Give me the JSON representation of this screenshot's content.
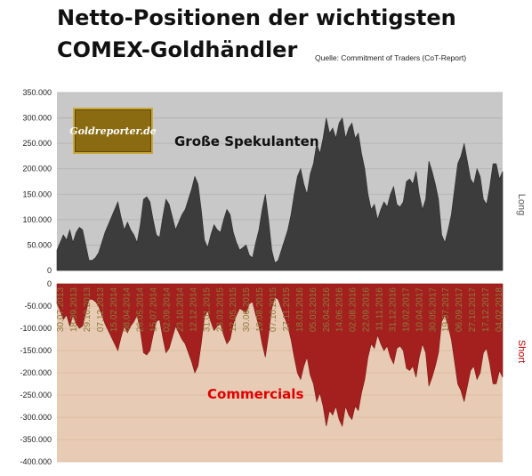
{
  "header": {
    "title_line1": "Netto-Positionen der wichtigsten",
    "title_line2": "COMEX-Goldhändler",
    "source": "Quelle: Commitment of Traders (CoT-Report)"
  },
  "logo": {
    "text": "Goldreporter.de"
  },
  "colors": {
    "top_panel_bg": "#c8c8c8",
    "top_area": "#3c3c3c",
    "bottom_panel_bg": "#e8cbb4",
    "bottom_area": "#a3201f",
    "commercials_label": "#e00000",
    "date_label": "#8c7b3a"
  },
  "chart_data": [
    {
      "type": "area",
      "panel": "top",
      "label": "Große Spekulanten",
      "side_label": "Long",
      "ylim": [
        0,
        350000
      ],
      "yticks": [
        "0",
        "50.000",
        "100.000",
        "150.000",
        "200.000",
        "250.000",
        "300.000",
        "350.000"
      ],
      "grid": true,
      "values": [
        40000,
        55000,
        70000,
        60000,
        80000,
        55000,
        75000,
        85000,
        80000,
        50000,
        20000,
        20000,
        25000,
        35000,
        55000,
        75000,
        90000,
        105000,
        120000,
        135000,
        105000,
        80000,
        95000,
        80000,
        70000,
        55000,
        90000,
        140000,
        145000,
        135000,
        100000,
        70000,
        65000,
        105000,
        140000,
        130000,
        105000,
        80000,
        95000,
        110000,
        120000,
        140000,
        160000,
        185000,
        170000,
        120000,
        60000,
        45000,
        70000,
        90000,
        80000,
        75000,
        100000,
        120000,
        110000,
        75000,
        55000,
        40000,
        45000,
        50000,
        30000,
        25000,
        55000,
        80000,
        120000,
        150000,
        100000,
        40000,
        15000,
        20000,
        40000,
        60000,
        80000,
        110000,
        150000,
        185000,
        200000,
        170000,
        150000,
        190000,
        210000,
        250000,
        230000,
        260000,
        300000,
        270000,
        280000,
        260000,
        290000,
        300000,
        260000,
        280000,
        290000,
        260000,
        270000,
        230000,
        200000,
        150000,
        120000,
        130000,
        100000,
        120000,
        135000,
        125000,
        150000,
        165000,
        130000,
        125000,
        135000,
        175000,
        180000,
        170000,
        195000,
        150000,
        120000,
        140000,
        215000,
        195000,
        170000,
        140000,
        70000,
        55000,
        80000,
        110000,
        160000,
        210000,
        225000,
        250000,
        215000,
        180000,
        170000,
        200000,
        185000,
        140000,
        130000,
        165000,
        210000,
        210000,
        180000,
        195000
      ]
    },
    {
      "type": "area",
      "panel": "bottom",
      "label": "Commercials",
      "side_label": "Short",
      "ylim": [
        -400000,
        0
      ],
      "yticks": [
        "0",
        "-50.000",
        "-100.000",
        "-150.000",
        "-200.000",
        "-250.000",
        "-300.000",
        "-350.000",
        "-400.000"
      ],
      "grid": true,
      "x_labels": [
        "30.07.2013",
        "18.09.2013",
        "29.10.2013",
        "07.12.2013",
        "15.02.2014",
        "08.04.2014",
        "26.05.2014",
        "15.07.2014",
        "02.09.2014",
        "23.10.2014",
        "12.12.2014",
        "31.01.2015",
        "23.03.2015",
        "12.05.2015",
        "30.06.2015",
        "19.08.2015",
        "07.10.2015",
        "27.11.2015",
        "18.01.2016",
        "05.03.2016",
        "26.04.2016",
        "14.06.2016",
        "02.08.2016",
        "22.09.2016",
        "11.11.2016",
        "31.12.2016",
        "19.02.2017",
        "10.04.2017",
        "30.05.2017",
        "19.07.2017",
        "06.09.2017",
        "27.10.2017",
        "17.12.2017",
        "04.02.2018"
      ],
      "values": [
        -45000,
        -60000,
        -80000,
        -70000,
        -95000,
        -70000,
        -90000,
        -100000,
        -95000,
        -65000,
        -35000,
        -35000,
        -40000,
        -50000,
        -70000,
        -90000,
        -105000,
        -120000,
        -135000,
        -150000,
        -120000,
        -95000,
        -110000,
        -95000,
        -85000,
        -70000,
        -105000,
        -155000,
        -160000,
        -150000,
        -115000,
        -85000,
        -80000,
        -120000,
        -155000,
        -145000,
        -120000,
        -95000,
        -110000,
        -125000,
        -135000,
        -155000,
        -175000,
        -200000,
        -185000,
        -135000,
        -75000,
        -60000,
        -85000,
        -105000,
        -95000,
        -90000,
        -115000,
        -135000,
        -125000,
        -90000,
        -70000,
        -55000,
        -60000,
        -65000,
        -45000,
        -40000,
        -70000,
        -95000,
        -135000,
        -165000,
        -115000,
        -55000,
        -30000,
        -35000,
        -55000,
        -75000,
        -95000,
        -125000,
        -165000,
        -200000,
        -215000,
        -185000,
        -165000,
        -205000,
        -225000,
        -265000,
        -245000,
        -275000,
        -320000,
        -285000,
        -295000,
        -275000,
        -305000,
        -320000,
        -275000,
        -295000,
        -305000,
        -275000,
        -285000,
        -245000,
        -215000,
        -165000,
        -135000,
        -145000,
        -115000,
        -135000,
        -150000,
        -140000,
        -165000,
        -180000,
        -145000,
        -140000,
        -150000,
        -190000,
        -195000,
        -185000,
        -210000,
        -165000,
        -135000,
        -155000,
        -230000,
        -210000,
        -185000,
        -155000,
        -85000,
        -70000,
        -95000,
        -125000,
        -175000,
        -225000,
        -240000,
        -265000,
        -230000,
        -195000,
        -185000,
        -215000,
        -200000,
        -155000,
        -145000,
        -180000,
        -225000,
        -225000,
        -195000,
        -210000
      ]
    }
  ]
}
